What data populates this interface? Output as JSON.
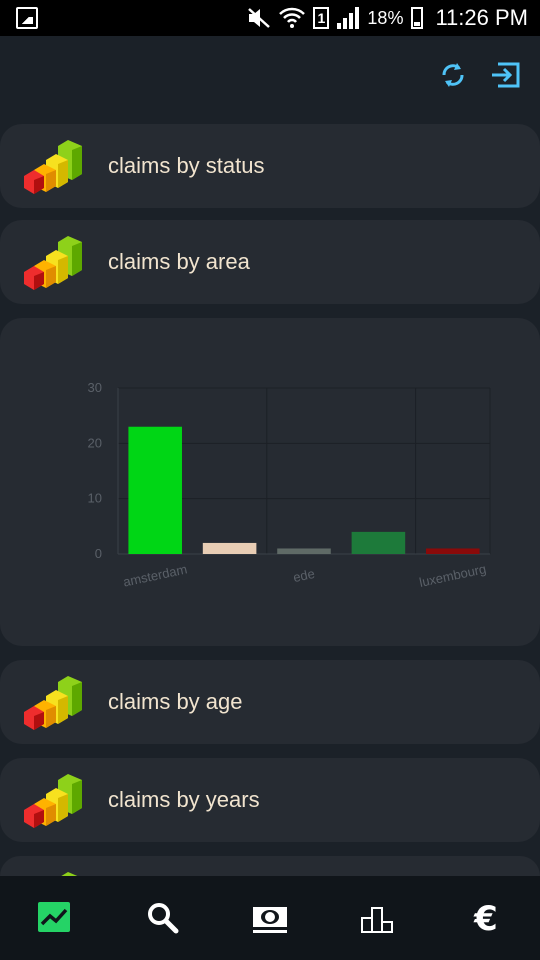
{
  "statusbar": {
    "battery_pct": "18%",
    "time": "11:26 PM",
    "sim": "1",
    "icons": [
      "image-icon",
      "mute-icon",
      "wifi-icon",
      "sim-icon",
      "signal-icon",
      "battery-icon"
    ]
  },
  "toolbar": {
    "icons": [
      "refresh-icon",
      "logout-icon"
    ]
  },
  "cards": [
    {
      "label": "claims by status",
      "icon": "bar-chart-3d-icon"
    },
    {
      "label": "claims by area",
      "icon": "bar-chart-3d-icon"
    },
    {
      "label": "claims by age",
      "icon": "bar-chart-3d-icon"
    },
    {
      "label": "claims by years",
      "icon": "bar-chart-3d-icon"
    }
  ],
  "chart_data": {
    "type": "bar",
    "categories": [
      "amsterdam",
      "",
      "ede",
      "",
      "luxembourg"
    ],
    "values": [
      23,
      2,
      1,
      4,
      1
    ],
    "bar_colors": [
      "#00d615",
      "#e8cdb4",
      "#5f6a66",
      "#1d7a3a",
      "#8a0a0a"
    ],
    "ylim": [
      0,
      30
    ],
    "yticks": [
      0,
      10,
      20,
      30
    ],
    "grid": true
  },
  "bottomnav": {
    "items": [
      "trend-chart-icon",
      "search-icon",
      "money-icon",
      "podium-icon",
      "euro-icon"
    ],
    "active": 0,
    "active_color": "#25d366",
    "color": "#ffffff"
  }
}
